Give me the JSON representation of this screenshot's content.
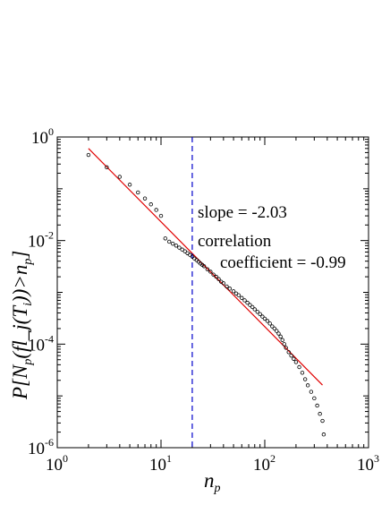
{
  "chart_data": {
    "type": "scatter",
    "xlabel": "n_p",
    "ylabel": "P[N_p(fl_j(T_i))>n_p]",
    "x_scale": "log",
    "y_scale": "log",
    "xlim": [
      1,
      1000
    ],
    "ylim": [
      1e-06,
      1
    ],
    "grid": false,
    "x_ticks": [
      {
        "base": "10",
        "exp": "0"
      },
      {
        "base": "10",
        "exp": "1"
      },
      {
        "base": "10",
        "exp": "2"
      },
      {
        "base": "10",
        "exp": "3"
      }
    ],
    "y_ticks": [
      {
        "base": "10",
        "exp": "0"
      },
      {
        "base": "10",
        "exp": "-2"
      },
      {
        "base": "10",
        "exp": "-4"
      },
      {
        "base": "10",
        "exp": "-6"
      }
    ],
    "series": [
      {
        "kind": "markers",
        "marker": "circle-open",
        "color": "#000000",
        "x": [
          2,
          3,
          4,
          5,
          6,
          7,
          8,
          9,
          10,
          11,
          12,
          13,
          14,
          15,
          16,
          17,
          18,
          19,
          20,
          21,
          22,
          23,
          24,
          25,
          26,
          28,
          30,
          32,
          34,
          36,
          38,
          40,
          43,
          46,
          50,
          53,
          56,
          60,
          64,
          68,
          72,
          76,
          80,
          85,
          90,
          95,
          100,
          106,
          112,
          118,
          124,
          130,
          136,
          142,
          148,
          154,
          160,
          170,
          180,
          190,
          200,
          215,
          230,
          245,
          260,
          280,
          300,
          320,
          340,
          360,
          370
        ],
        "y": [
          0.45,
          0.26,
          0.17,
          0.12,
          0.085,
          0.065,
          0.05,
          0.039,
          0.03,
          0.011,
          0.0095,
          0.0087,
          0.008,
          0.0073,
          0.0067,
          0.0062,
          0.0057,
          0.0053,
          0.0049,
          0.0045,
          0.0042,
          0.0039,
          0.0036,
          0.0034,
          0.0032,
          0.0028,
          0.0025,
          0.0022,
          0.002,
          0.0018,
          0.0016,
          0.0015,
          0.0013,
          0.00118,
          0.00105,
          0.00095,
          0.00088,
          0.00078,
          0.0007,
          0.00063,
          0.00057,
          0.00052,
          0.00047,
          0.00042,
          0.00038,
          0.00034,
          0.00031,
          0.00028,
          0.00025,
          0.00022,
          0.0002,
          0.00018,
          0.00016,
          0.00014,
          0.00012,
          0.0001,
          8.5e-05,
          7e-05,
          6e-05,
          5.2e-05,
          4.5e-05,
          3.6e-05,
          2.8e-05,
          2.1e-05,
          1.6e-05,
          1.2e-05,
          9e-06,
          6.5e-06,
          4.5e-06,
          3.3e-06,
          1.8e-06
        ]
      },
      {
        "kind": "fit-line",
        "color": "#e00000",
        "x": [
          2,
          360
        ],
        "y": [
          0.6,
          1.62e-05
        ]
      },
      {
        "kind": "vertical-dashed-line",
        "color": "#0000cc",
        "x": 20
      }
    ],
    "annotations": [
      {
        "text": "slope = -2.03"
      },
      {
        "text": "correlation"
      },
      {
        "text": "coefficient = -0.99"
      }
    ]
  }
}
